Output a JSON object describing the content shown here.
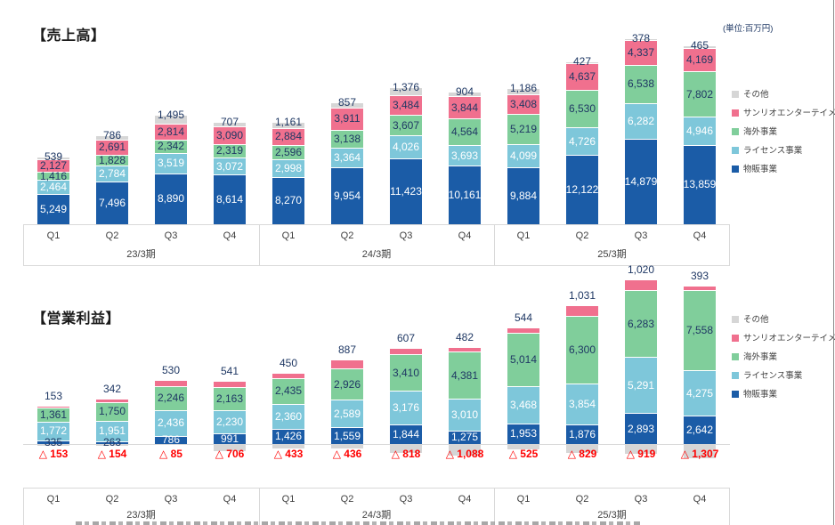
{
  "page": {
    "unit_note": "(単位:百万円)",
    "legend_items": [
      {
        "key": "other",
        "label": "その他",
        "color": "#d6d6d6"
      },
      {
        "key": "entertainment",
        "label": "サンリオエンターテイメント",
        "color": "#f0708e"
      },
      {
        "key": "overseas",
        "label": "海外事業",
        "color": "#80ce9b"
      },
      {
        "key": "license",
        "label": "ライセンス事業",
        "color": "#7ec7da"
      },
      {
        "key": "retail",
        "label": "物販事業",
        "color": "#1b5ca7"
      }
    ],
    "axis": {
      "quarters": [
        "Q1",
        "Q2",
        "Q3",
        "Q4",
        "Q1",
        "Q2",
        "Q3",
        "Q4",
        "Q1",
        "Q2",
        "Q3",
        "Q4"
      ],
      "year_groups": [
        "23/3期",
        "24/3期",
        "25/3期"
      ]
    },
    "colors": {
      "label_navy": "#1f3864",
      "label_white": "#ffffff",
      "negative_red": "#ff0000",
      "axis_gray": "#d9d9d9"
    },
    "negative_prefix": "△ "
  },
  "chart_data": [
    {
      "type": "bar",
      "stacked": true,
      "title": "【売上高】",
      "unit": "百万円",
      "legend_position": "right",
      "categories": [
        "Q1",
        "Q2",
        "Q3",
        "Q4",
        "Q1",
        "Q2",
        "Q3",
        "Q4",
        "Q1",
        "Q2",
        "Q3",
        "Q4"
      ],
      "groups": [
        "23/3期",
        "24/3期",
        "25/3期"
      ],
      "series": [
        {
          "key": "retail",
          "name": "物販事業",
          "color": "#1b5ca7",
          "values": [
            5249,
            7496,
            8890,
            8614,
            8270,
            9954,
            11423,
            10161,
            9884,
            12122,
            14879,
            13859
          ]
        },
        {
          "key": "license",
          "name": "ライセンス事業",
          "color": "#7ec7da",
          "values": [
            2464,
            2784,
            3519,
            3072,
            2998,
            3364,
            4026,
            3693,
            4099,
            4726,
            6282,
            4946
          ]
        },
        {
          "key": "overseas",
          "name": "海外事業",
          "color": "#80ce9b",
          "values": [
            1416,
            1828,
            2342,
            2319,
            2596,
            3138,
            3607,
            4564,
            5219,
            6530,
            6538,
            7802
          ]
        },
        {
          "key": "entertainment",
          "name": "サンリオエンターテイメント",
          "color": "#f0708e",
          "values": [
            2127,
            2691,
            2814,
            3090,
            2884,
            3911,
            3484,
            3844,
            3408,
            4637,
            4337,
            4169
          ]
        },
        {
          "key": "other",
          "name": "その他",
          "color": "#d6d6d6",
          "values": [
            539,
            786,
            1495,
            707,
            1161,
            857,
            1376,
            904,
            1186,
            427,
            378,
            465
          ]
        }
      ]
    },
    {
      "type": "bar",
      "stacked": true,
      "title": "【営業利益】",
      "unit": "百万円",
      "legend_position": "right",
      "categories": [
        "Q1",
        "Q2",
        "Q3",
        "Q4",
        "Q1",
        "Q2",
        "Q3",
        "Q4",
        "Q1",
        "Q2",
        "Q3",
        "Q4"
      ],
      "groups": [
        "23/3期",
        "24/3期",
        "25/3期"
      ],
      "series": [
        {
          "key": "retail",
          "name": "物販事業",
          "color": "#1b5ca7",
          "values": [
            335,
            263,
            786,
            991,
            1426,
            1559,
            1844,
            1275,
            1953,
            1876,
            2893,
            2642
          ]
        },
        {
          "key": "license",
          "name": "ライセンス事業",
          "color": "#7ec7da",
          "values": [
            1772,
            1951,
            2436,
            2230,
            2360,
            2589,
            3176,
            3010,
            3468,
            3854,
            5291,
            4275
          ]
        },
        {
          "key": "overseas",
          "name": "海外事業",
          "color": "#80ce9b",
          "values": [
            1361,
            1750,
            2246,
            2163,
            2435,
            2926,
            3410,
            4381,
            5014,
            6300,
            6283,
            7558
          ]
        },
        {
          "key": "entertainment",
          "name": "サンリオエンターテイメント",
          "color": "#f0708e",
          "values": [
            153,
            342,
            530,
            541,
            450,
            887,
            607,
            482,
            544,
            1031,
            1020,
            393
          ]
        }
      ],
      "negative_series": {
        "key": "other",
        "name": "その他",
        "color": "#d6d6d6",
        "values": [
          -153,
          -154,
          -85,
          -706,
          -433,
          -436,
          -818,
          -1088,
          -525,
          -829,
          -919,
          -1307
        ]
      }
    }
  ]
}
